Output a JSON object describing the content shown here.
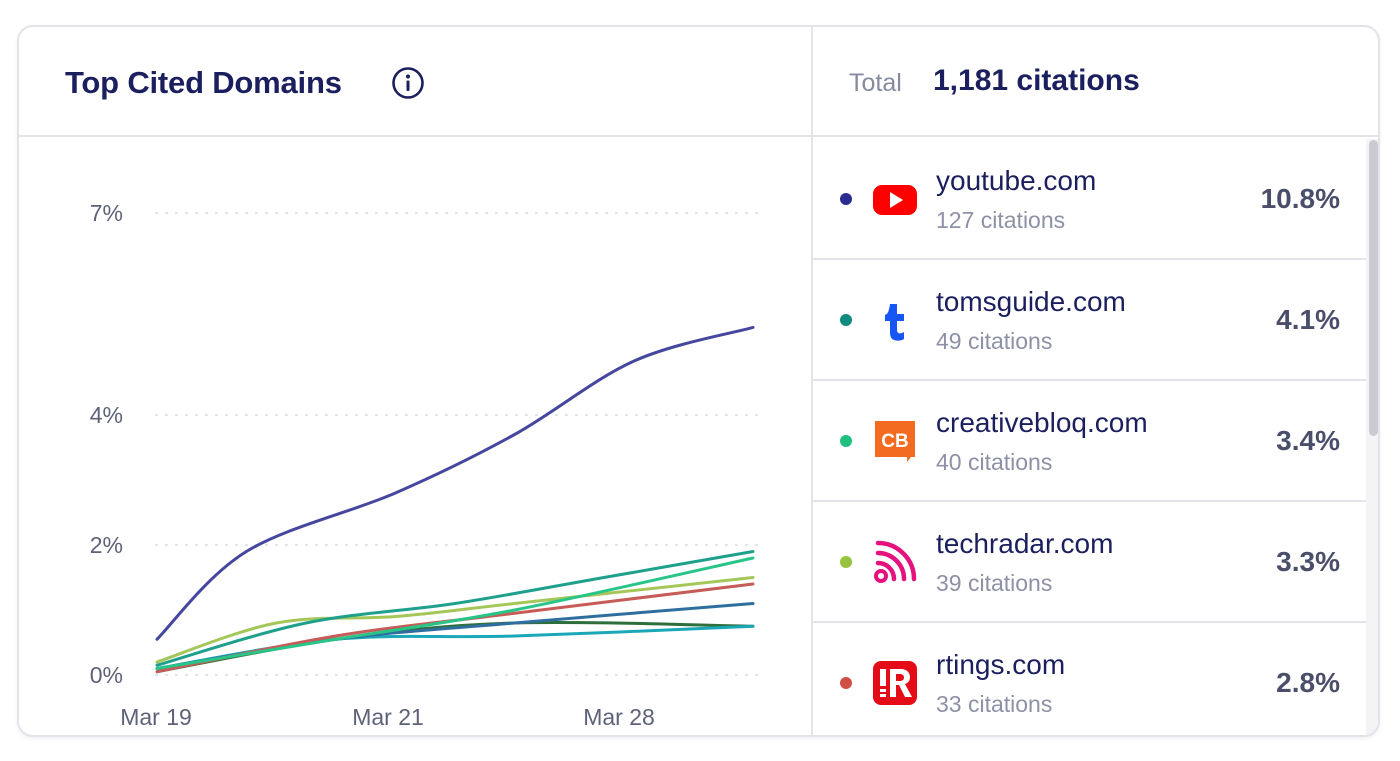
{
  "widget": {
    "title": "Top Cited Domains",
    "total_label": "Total",
    "total_value": "1,181 citations"
  },
  "chart_data": {
    "type": "line",
    "x_labels": [
      "Mar 19",
      "Mar 21",
      "Mar 28"
    ],
    "y_ticks": [
      "7%",
      "4%",
      "2%",
      "0%"
    ],
    "y_tick_values": [
      7,
      4,
      2,
      0
    ],
    "grid": true,
    "series": [
      {
        "color": "#45469e",
        "points": [
          [
            0,
            0.55
          ],
          [
            0.15,
            1.9
          ],
          [
            0.4,
            2.8
          ],
          [
            0.6,
            3.7
          ],
          [
            0.8,
            4.8
          ],
          [
            1,
            5.3
          ]
        ]
      },
      {
        "color": "#1fa08c",
        "points": [
          [
            0,
            0.15
          ],
          [
            0.25,
            0.8
          ],
          [
            0.5,
            1.1
          ],
          [
            0.75,
            1.5
          ],
          [
            1,
            1.9
          ]
        ]
      },
      {
        "color": "#28c488",
        "points": [
          [
            0,
            0.1
          ],
          [
            0.3,
            0.55
          ],
          [
            0.6,
            1.0
          ],
          [
            1,
            1.8
          ]
        ]
      },
      {
        "color": "#a5c75a",
        "points": [
          [
            0,
            0.2
          ],
          [
            0.2,
            0.8
          ],
          [
            0.4,
            0.9
          ],
          [
            0.6,
            1.1
          ],
          [
            1,
            1.5
          ]
        ]
      },
      {
        "color": "#c75b57",
        "points": [
          [
            0,
            0.05
          ],
          [
            0.3,
            0.6
          ],
          [
            0.6,
            0.95
          ],
          [
            1,
            1.4
          ]
        ]
      },
      {
        "color": "#2f6fa0",
        "points": [
          [
            0,
            0.1
          ],
          [
            0.3,
            0.55
          ],
          [
            0.6,
            0.8
          ],
          [
            1,
            1.1
          ]
        ]
      },
      {
        "color": "#1aa8b8",
        "points": [
          [
            0,
            0.1
          ],
          [
            0.3,
            0.55
          ],
          [
            0.6,
            0.6
          ],
          [
            1,
            0.75
          ]
        ]
      },
      {
        "color": "#2e6e3a",
        "points": [
          [
            0,
            0.05
          ],
          [
            0.3,
            0.55
          ],
          [
            0.6,
            0.8
          ],
          [
            1,
            0.75
          ]
        ]
      }
    ]
  },
  "domains": [
    {
      "name": "youtube.com",
      "citations": "127 citations",
      "percent": "10.8%",
      "dot_color": "#2a2d8f",
      "logo": "youtube-icon"
    },
    {
      "name": "tomsguide.com",
      "citations": "49 citations",
      "percent": "4.1%",
      "dot_color": "#0f8a7c",
      "logo": "tomsguide-icon"
    },
    {
      "name": "creativebloq.com",
      "citations": "40 citations",
      "percent": "3.4%",
      "dot_color": "#1fc07f",
      "logo": "creativebloq-icon"
    },
    {
      "name": "techradar.com",
      "citations": "39 citations",
      "percent": "3.3%",
      "dot_color": "#97c23d",
      "logo": "techradar-icon"
    },
    {
      "name": "rtings.com",
      "citations": "33 citations",
      "percent": "2.8%",
      "dot_color": "#cf4f45",
      "logo": "rtings-icon"
    }
  ]
}
